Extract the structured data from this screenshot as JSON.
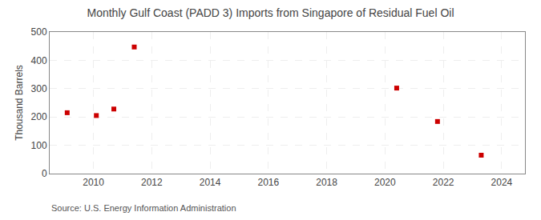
{
  "chart_data": {
    "type": "scatter",
    "title": "Monthly Gulf Coast (PADD 3) Imports from Singapore of Residual Fuel Oil",
    "ylabel": "Thousand Barrels",
    "annotations": [
      "Source: U.S. Energy Information Administration"
    ],
    "x": [
      2009.1,
      2010.1,
      2010.7,
      2011.4,
      2020.4,
      2021.8,
      2023.3
    ],
    "values": [
      215,
      205,
      228,
      447,
      302,
      184,
      65
    ],
    "color": "#cc0000",
    "marker": "square",
    "xlim": [
      2008.5,
      2024.8
    ],
    "ylim": [
      0,
      500
    ],
    "xticks": [
      2010,
      2012,
      2014,
      2016,
      2018,
      2020,
      2022,
      2024
    ],
    "yticks": [
      0,
      100,
      200,
      300,
      400,
      500
    ],
    "grid": true
  }
}
